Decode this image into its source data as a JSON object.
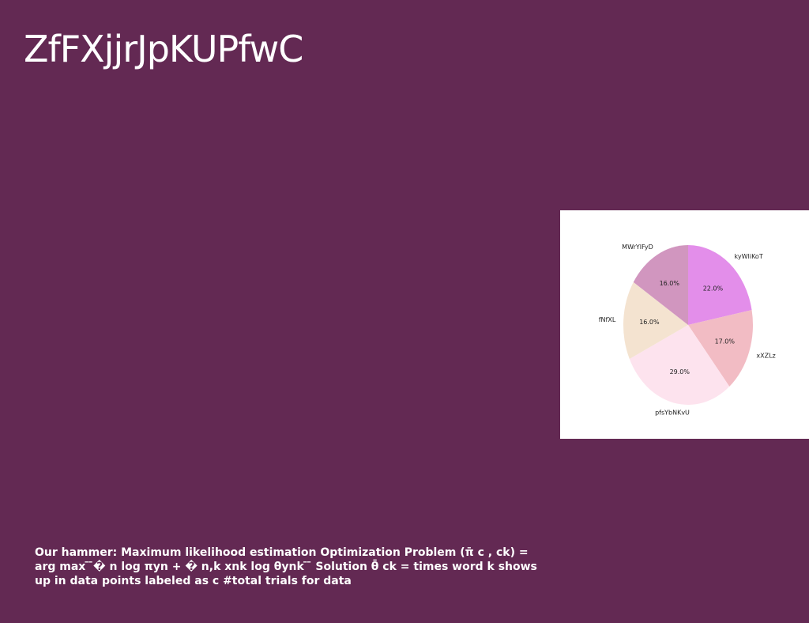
{
  "slide": {
    "title": "ZfFXjjrJpKUPfwC",
    "caption": "Our hammer: Maximum likelihood estimation Optimization Problem (π̄ c , ck) = arg max ̄ ̄� n log πyn + � n,k xnk log θynk ̄ ̄ Solution θ̄ ck = times word k shows up in data points labeled as c #total trials for data"
  },
  "chart_data": {
    "type": "pie",
    "title": "",
    "start_angle_deg": 90,
    "direction": "clockwise",
    "slices": [
      {
        "label": "kyWIiKoT",
        "value": 22.0,
        "pct_label": "22.0%",
        "color": "#e38eea"
      },
      {
        "label": "xXZLz",
        "value": 17.0,
        "pct_label": "17.0%",
        "color": "#f2bcc4"
      },
      {
        "label": "pfsYbNKvU",
        "value": 29.0,
        "pct_label": "29.0%",
        "color": "#fde3ee"
      },
      {
        "label": "fNfXL",
        "value": 16.0,
        "pct_label": "16.0%",
        "color": "#f4e3d0"
      },
      {
        "label": "MWrYlFyD",
        "value": 16.0,
        "pct_label": "16.0%",
        "color": "#d196bf"
      }
    ]
  }
}
